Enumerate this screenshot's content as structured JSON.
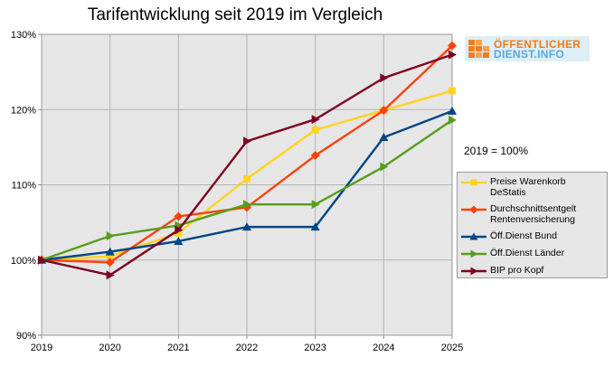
{
  "colors": {
    "plot_bg": "#e6e6e6",
    "grid": "#b3b3b3"
  },
  "logo": {
    "line1": "ÖFFENTLICHER",
    "line2": "DIENST.INFO"
  },
  "note": "2019 = 100%",
  "chart_data": {
    "type": "line",
    "title": "Tarifentwicklung seit 2019 im Vergleich",
    "xlabel": "",
    "ylabel": "",
    "x": [
      "2019",
      "2020",
      "2021",
      "2022",
      "2023",
      "2024",
      "2025"
    ],
    "ylim": [
      90,
      130
    ],
    "yticks": [
      90,
      100,
      110,
      120,
      130
    ],
    "ytick_labels": [
      "90%",
      "100%",
      "110%",
      "120%",
      "130%"
    ],
    "grid": true,
    "legend_position": "right",
    "series": [
      {
        "name": "Preise Warenkorb DeStatis",
        "color": "#ffd320",
        "marker": "square",
        "values": [
          100.0,
          100.5,
          103.6,
          110.8,
          117.3,
          119.9,
          122.5
        ]
      },
      {
        "name": "Durchschnittsentgelt Rentenversicherung",
        "color": "#ff420e",
        "marker": "diamond",
        "values": [
          100.0,
          99.7,
          105.8,
          107.0,
          113.9,
          119.9,
          128.5
        ]
      },
      {
        "name": "Öff.Dienst Bund",
        "color": "#004586",
        "marker": "triangle",
        "values": [
          100.0,
          101.1,
          102.5,
          104.4,
          104.4,
          116.3,
          119.8
        ]
      },
      {
        "name": "Öff.Dienst Länder",
        "color": "#579d1c",
        "marker": "triangle-right",
        "values": [
          100.0,
          103.2,
          104.6,
          107.4,
          107.4,
          112.4,
          118.6
        ]
      },
      {
        "name": "BIP pro Kopf",
        "color": "#7e0021",
        "marker": "triangle-right",
        "values": [
          100.0,
          98.0,
          104.0,
          115.8,
          118.7,
          124.2,
          127.3
        ]
      }
    ]
  }
}
